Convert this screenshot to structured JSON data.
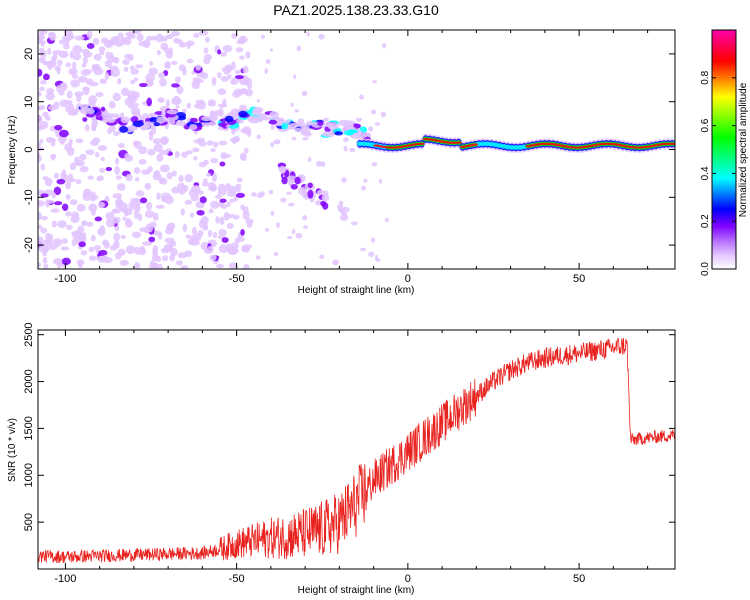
{
  "title": "PAZ1.2025.138.23.33.G10",
  "chart_data": [
    {
      "type": "heatmap",
      "title": "PAZ1.2025.138.23.33.G10",
      "xlabel": "Height of straight line (km)",
      "ylabel": "Frequency (Hz)",
      "xlim": [
        -108,
        78
      ],
      "ylim": [
        -25,
        25
      ],
      "x_ticks": [
        -100,
        -50,
        0,
        50
      ],
      "y_ticks": [
        -20,
        -10,
        0,
        10,
        20
      ],
      "colorbar": {
        "label": "Normalized spectral amplitude",
        "range": [
          0,
          1
        ],
        "ticks": [
          "0.0",
          "0.2",
          "0.4",
          "0.6",
          "0.8"
        ],
        "colors": [
          "#ffffff",
          "#e2c4ff",
          "#8000ff",
          "#0000ff",
          "#00ffff",
          "#00ff00",
          "#ffff00",
          "#ff0000",
          "#ff00aa"
        ]
      },
      "features": [
        {
          "name": "",
          "x": [
            -12,
            78
          ],
          "frequency": 0.8,
          "amplitude": 0.9
        },
        {
          "name": "",
          "x": [
            -95,
            -20
          ],
          "frequency": [
            7,
            3
          ],
          "amplitude": 0.3
        },
        {
          "name": "",
          "x": [
            -38,
            -18
          ],
          "frequency": [
            -4,
            -14
          ],
          "amplitude": 0.25
        }
      ]
    },
    {
      "type": "line",
      "xlabel": "Height of straight line (km)",
      "ylabel": "SNR (10 * v/v)",
      "xlim": [
        -108,
        78
      ],
      "ylim": [
        0,
        2550
      ],
      "x_ticks": [
        -100,
        -50,
        0,
        50
      ],
      "y_ticks": [
        500,
        1000,
        1500,
        2000,
        2500
      ],
      "line_color": "#e8231f",
      "series": [
        {
          "name": "",
          "x": [
            -108,
            -100,
            -90,
            -80,
            -70,
            -60,
            -55,
            -50,
            -45,
            -40,
            -35,
            -30,
            -25,
            -20,
            -15,
            -12,
            -10,
            -5,
            0,
            5,
            10,
            15,
            20,
            25,
            30,
            35,
            40,
            45,
            50,
            55,
            60,
            64,
            65,
            66,
            70,
            78
          ],
          "y": [
            140,
            130,
            140,
            150,
            160,
            170,
            210,
            270,
            300,
            330,
            350,
            380,
            420,
            500,
            700,
            850,
            950,
            1100,
            1250,
            1400,
            1550,
            1700,
            1850,
            2000,
            2120,
            2200,
            2250,
            2280,
            2300,
            2330,
            2360,
            2390,
            1380,
            1380,
            1400,
            1430
          ]
        }
      ]
    }
  ]
}
